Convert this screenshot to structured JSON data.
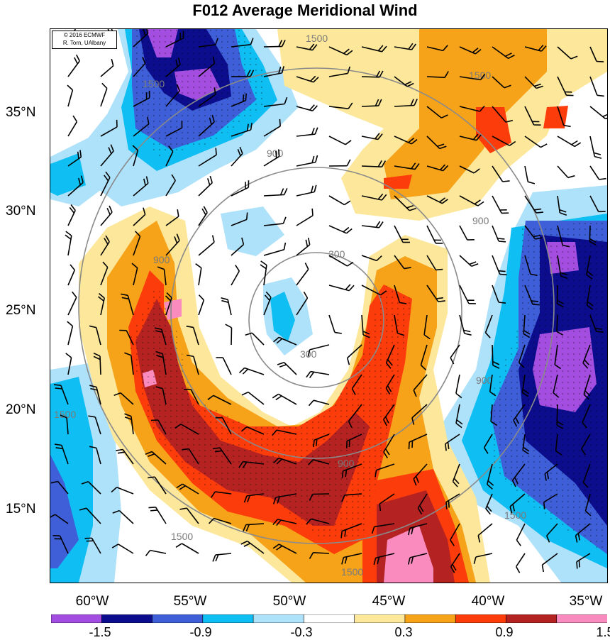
{
  "title": "F012 Average Meridional Wind",
  "credit": {
    "line1": "© 2016 ECMWF",
    "line2": "R. Torn, UAlbany"
  },
  "lat_labels": [
    "35°N",
    "30°N",
    "25°N",
    "20°N",
    "15°N"
  ],
  "lon_labels": [
    "60°W",
    "55°W",
    "50°W",
    "45°W",
    "40°W",
    "35°W"
  ],
  "contour_labels": [
    "1500",
    "1500",
    "900",
    "900",
    "900",
    "300",
    "300",
    "900",
    "900",
    "1500",
    "1500",
    "1500",
    "1500",
    "1500"
  ],
  "colorbar": {
    "labels": [
      "-1.5",
      "-0.9",
      "-0.3",
      "0.3",
      "0.9",
      "1.5"
    ],
    "colors": [
      "#a34ee0",
      "#0b0d8c",
      "#3e5fd8",
      "#0fbef2",
      "#aee1fa",
      "#ffffff",
      "#fde79a",
      "#f6a31a",
      "#fd3c0b",
      "#b42222",
      "#f98bbf"
    ]
  },
  "legend_colors": {
    "strong_negative": "#a34ee0",
    "strong_positive": "#f98bbf",
    "contour_line": "#8a8a8a"
  }
}
